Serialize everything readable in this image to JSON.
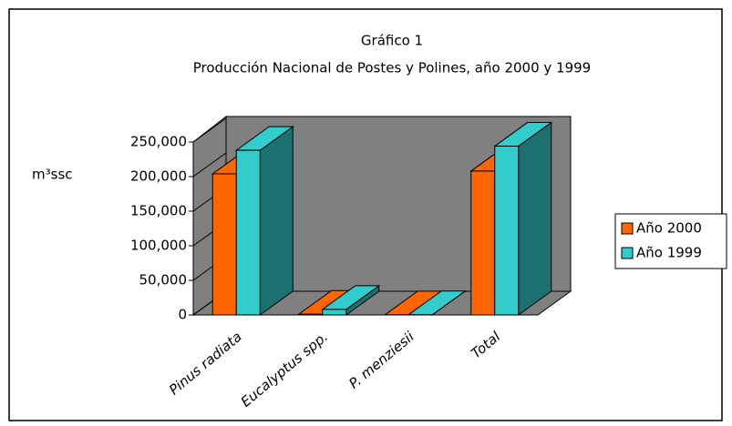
{
  "chart_data": {
    "type": "bar3d",
    "title": "Gráfico 1",
    "subtitle": "Producción Nacional de Postes y Polines, año 2000 y 1999",
    "y_label": "m³ssc",
    "categories": [
      "Pinus radiata",
      "Eucalyptus spp.",
      "P. menziesii",
      "Total"
    ],
    "series": [
      {
        "name": "Año 2000",
        "color": "#ff6600",
        "values": [
          204000,
          1000,
          200,
          208000
        ]
      },
      {
        "name": "Año 1999",
        "color": "#33cccc",
        "values": [
          238000,
          8000,
          300,
          244000
        ]
      }
    ],
    "ylim": [
      0,
      250000
    ],
    "yticks": [
      0,
      {
        "value": 50000,
        "label": "50,000"
      },
      {
        "value": 100000,
        "label": "100,000"
      },
      {
        "value": 150000,
        "label": "150,000"
      },
      {
        "value": 200000,
        "label": "200,000"
      },
      {
        "value": 250000,
        "label": "250,000"
      }
    ],
    "legend": "right"
  }
}
